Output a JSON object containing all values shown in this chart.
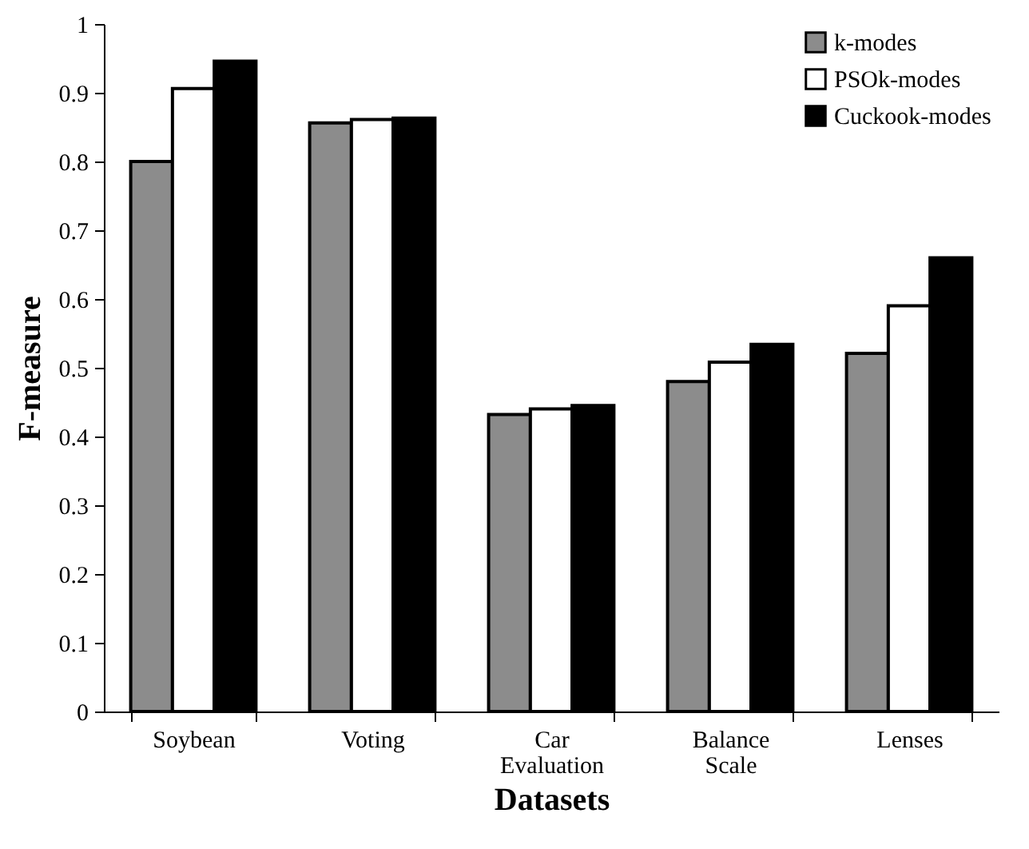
{
  "chart_data": {
    "type": "bar",
    "xlabel": "Datasets",
    "ylabel": "F-measure",
    "categories": [
      "Soybean",
      "Voting",
      "Car Evaluation",
      "Balance Scale",
      "Lenses"
    ],
    "series": [
      {
        "name": "k-modes",
        "color": "#8c8c8c",
        "values": [
          0.8,
          0.856,
          0.432,
          0.48,
          0.521
        ]
      },
      {
        "name": "PSOk-modes",
        "color": "#ffffff",
        "values": [
          0.906,
          0.861,
          0.44,
          0.508,
          0.59
        ]
      },
      {
        "name": "Cuckook-modes",
        "color": "#000000",
        "values": [
          0.946,
          0.863,
          0.445,
          0.534,
          0.66
        ]
      }
    ],
    "ylim": [
      0,
      1
    ],
    "yticks": [
      0,
      0.1,
      0.2,
      0.3,
      0.4,
      0.5,
      0.6,
      0.7,
      0.8,
      0.9,
      1
    ],
    "legend": "top right",
    "grid": false
  }
}
